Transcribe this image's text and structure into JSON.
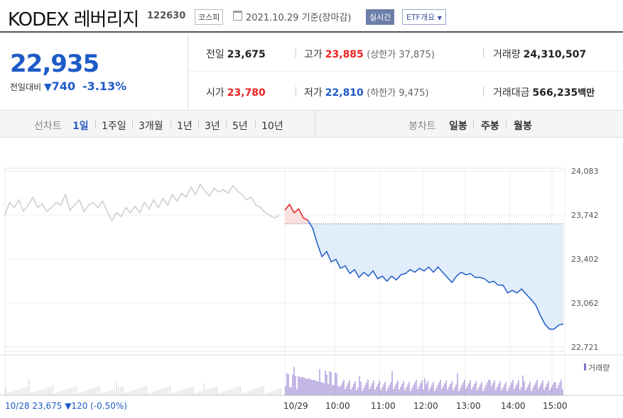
{
  "header": {
    "name": "KODEX 레버리지",
    "code": "122630",
    "market": "코스피",
    "date": "2021.10.29 기준(장마감)",
    "realtime": "실시간",
    "etf": "ETF개요"
  },
  "summary": {
    "price": "22,935",
    "change_label": "전일대비",
    "change_value": "740",
    "change_pct": "-3.13%",
    "prev_label": "전일",
    "prev": "23,675",
    "high_label": "고가",
    "high": "23,885",
    "upper_limit": "(상한가 37,875)",
    "volume_label": "거래량",
    "volume": "24,310,507",
    "open_label": "시가",
    "open": "23,780",
    "low_label": "저가",
    "low": "22,810",
    "lower_limit": "(하한가 9,475)",
    "amount_label": "거래대금",
    "amount": "566,235",
    "amount_unit": "백만"
  },
  "tabs": {
    "line_label": "선차트",
    "periods": [
      "1일",
      "1주일",
      "3개월",
      "1년",
      "3년",
      "5년",
      "10년"
    ],
    "selected": "1일",
    "candle_label": "봉차트",
    "candles": [
      "일봉",
      "주봉",
      "월봉"
    ]
  },
  "colors": {
    "down": "#1e5bc6",
    "up": "#e22222",
    "prev_day": "#cccccc",
    "volume": "#8a72c8"
  },
  "chart_data": {
    "type": "line",
    "y_ticks": [
      "24,083",
      "23,742",
      "23,402",
      "23,062",
      "22,721"
    ],
    "ylim": [
      22721,
      24083
    ],
    "x_ticks": [
      "10/29",
      "10:00",
      "11:00",
      "12:00",
      "13:00",
      "14:00",
      "15:00"
    ],
    "reference": 23675,
    "legend": "거래량",
    "footer": "10/28 23,675 ▼120 (-0.50%)",
    "prev_day_series": [
      23740,
      23840,
      23800,
      23860,
      23770,
      23820,
      23880,
      23800,
      23830,
      23770,
      23800,
      23840,
      23820,
      23900,
      23780,
      23820,
      23860,
      23770,
      23820,
      23840,
      23800,
      23850,
      23770,
      23700,
      23760,
      23730,
      23800,
      23760,
      23810,
      23760,
      23840,
      23790,
      23860,
      23800,
      23870,
      23820,
      23900,
      23850,
      23910,
      23880,
      23960,
      23900,
      23980,
      23930,
      23890,
      23950,
      23920,
      23940,
      23910,
      23970,
      23930,
      23900,
      23860,
      23880,
      23820,
      23800,
      23760,
      23740,
      23720,
      23740
    ],
    "today_series": [
      23780,
      23825,
      23760,
      23790,
      23720,
      23700,
      23640,
      23520,
      23420,
      23460,
      23380,
      23400,
      23330,
      23350,
      23290,
      23320,
      23260,
      23300,
      23270,
      23310,
      23250,
      23270,
      23230,
      23270,
      23240,
      23280,
      23290,
      23320,
      23300,
      23330,
      23310,
      23340,
      23300,
      23340,
      23300,
      23260,
      23220,
      23270,
      23300,
      23280,
      23290,
      23260,
      23260,
      23250,
      23220,
      23230,
      23200,
      23200,
      23140,
      23160,
      23140,
      23170,
      23130,
      23090,
      23050,
      22970,
      22900,
      22860,
      22860,
      22890,
      22900
    ]
  }
}
